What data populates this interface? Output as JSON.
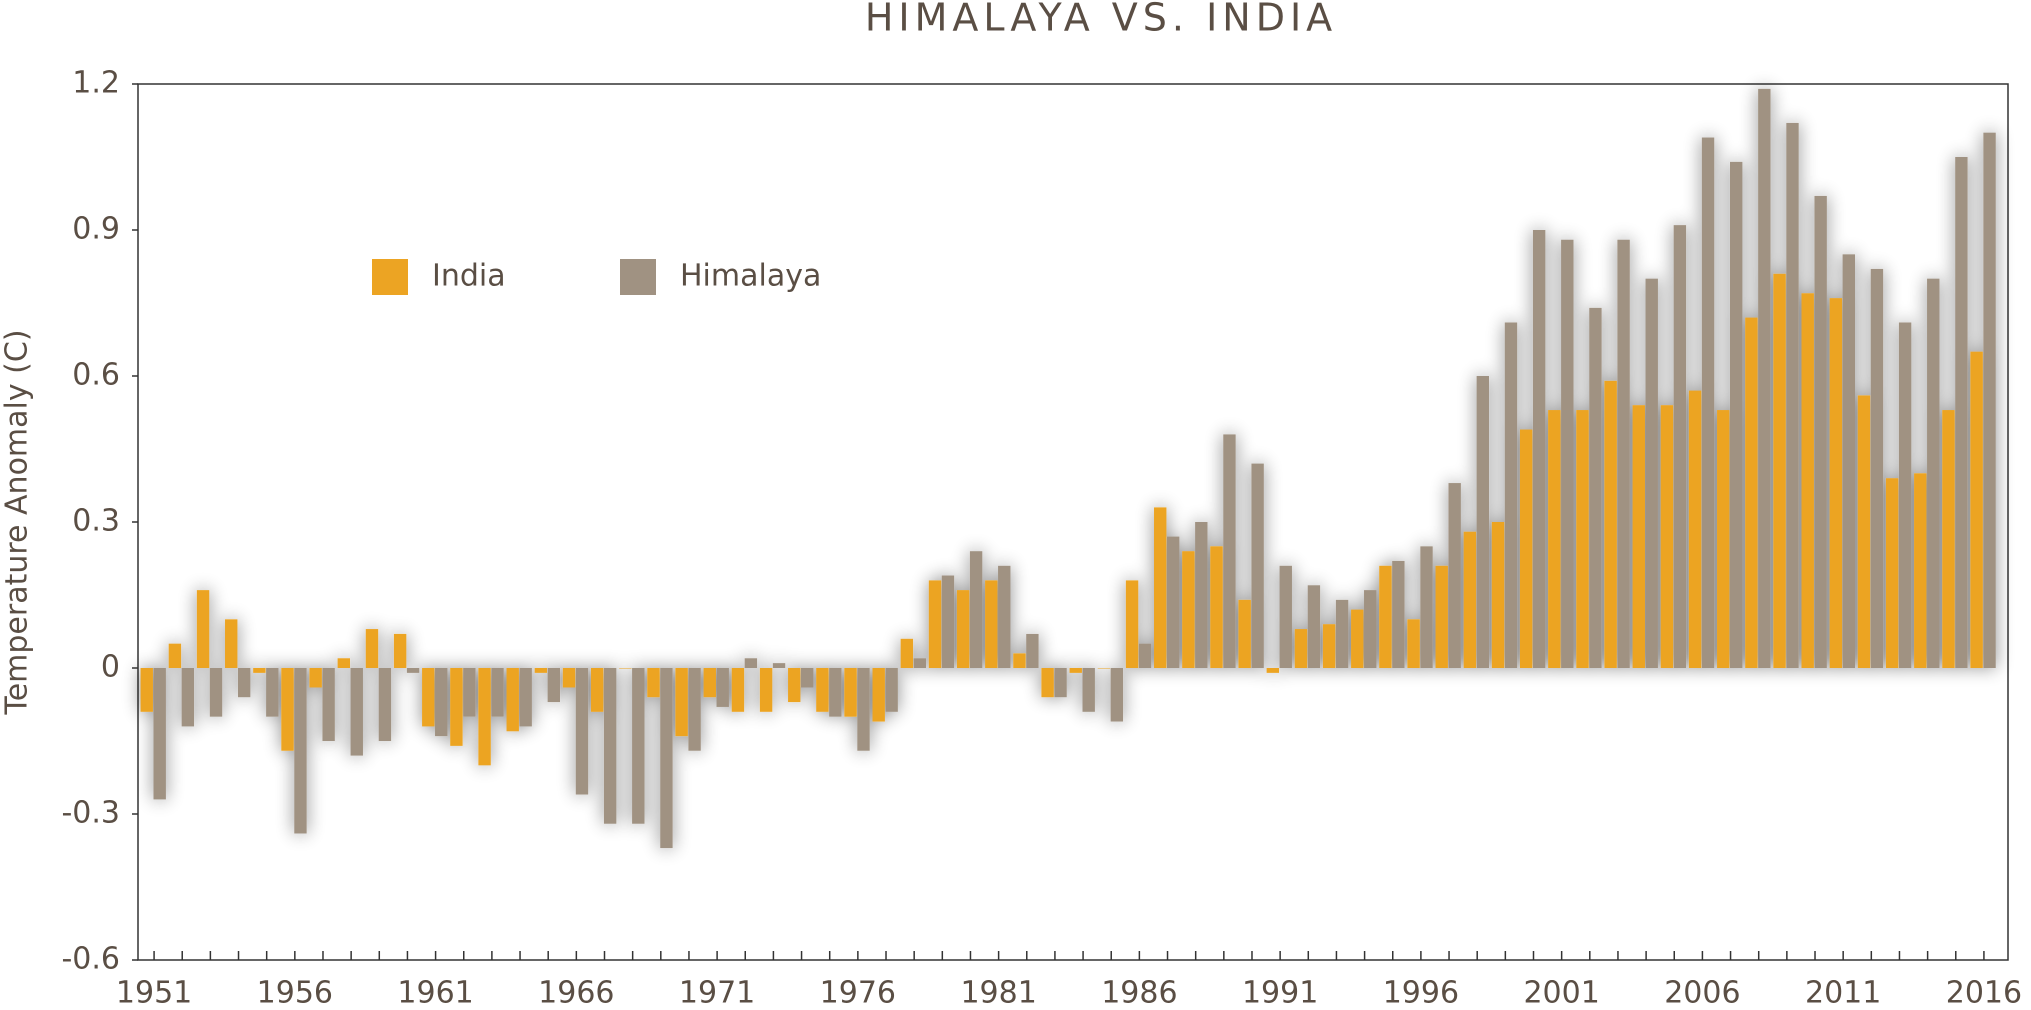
{
  "chart_data": {
    "type": "bar",
    "title": "HIMALAYA VS. INDIA",
    "y_label": "Temperature Anomaly (C)",
    "categories": [
      "1951",
      null,
      null,
      null,
      null,
      "1956",
      null,
      null,
      null,
      null,
      "1961",
      null,
      null,
      null,
      null,
      "1966",
      null,
      null,
      null,
      null,
      "1971",
      null,
      null,
      null,
      null,
      "1976",
      null,
      null,
      null,
      null,
      "1981",
      null,
      null,
      null,
      null,
      "1986",
      null,
      null,
      null,
      null,
      "1991",
      null,
      null,
      null,
      null,
      "1996",
      null,
      null,
      null,
      null,
      "2001",
      null,
      null,
      null,
      null,
      "2006",
      null,
      null,
      null,
      null,
      "2011",
      null,
      null,
      null,
      null,
      "2016"
    ],
    "series": [
      {
        "name": "India",
        "color": "#eca423",
        "values": [
          -0.09,
          0.05,
          0.16,
          0.1,
          -0.01,
          -0.17,
          -0.04,
          0.02,
          0.08,
          0.07,
          -0.12,
          -0.16,
          -0.2,
          -0.13,
          -0.01,
          -0.04,
          -0.09,
          0,
          -0.06,
          -0.14,
          -0.06,
          -0.09,
          -0.09,
          -0.07,
          -0.09,
          -0.1,
          -0.11,
          0.06,
          0.18,
          0.16,
          0.18,
          0.03,
          -0.06,
          -0.01,
          0,
          0.18,
          0.33,
          0.24,
          0.25,
          0.14,
          -0.01,
          0.08,
          0.09,
          0.12,
          0.21,
          0.1,
          0.21,
          0.28,
          0.3,
          0.49,
          0.53,
          0.53,
          0.59,
          0.54,
          0.54,
          0.57,
          0.53,
          0.72,
          0.81,
          0.77,
          0.76,
          0.56,
          0.39,
          0.4,
          0.53,
          0.65
        ]
      },
      {
        "name": "Himalaya",
        "color": "#a09282",
        "values": [
          -0.27,
          -0.12,
          -0.1,
          -0.06,
          -0.1,
          -0.34,
          -0.15,
          -0.18,
          -0.15,
          -0.01,
          -0.14,
          -0.1,
          -0.1,
          -0.12,
          -0.07,
          -0.26,
          -0.32,
          -0.32,
          -0.37,
          -0.17,
          -0.08,
          0.02,
          0.01,
          -0.04,
          -0.1,
          -0.17,
          -0.09,
          0.02,
          0.19,
          0.24,
          0.21,
          0.07,
          -0.06,
          -0.09,
          -0.11,
          0.05,
          0.27,
          0.3,
          0.48,
          0.42,
          0.21,
          0.17,
          0.14,
          0.16,
          0.22,
          0.25,
          0.38,
          0.6,
          0.71,
          0.9,
          0.88,
          0.74,
          0.88,
          0.8,
          0.91,
          1.09,
          1.04,
          1.19,
          1.12,
          0.97,
          0.85,
          0.82,
          0.71,
          0.8,
          1.05,
          1.1
        ]
      }
    ],
    "ylim": [
      -0.6,
      1.2
    ],
    "yticks": [
      -0.6,
      -0.3,
      0,
      0.3,
      0.6,
      0.9,
      1.2
    ],
    "grid": false,
    "legend": "top-left"
  }
}
